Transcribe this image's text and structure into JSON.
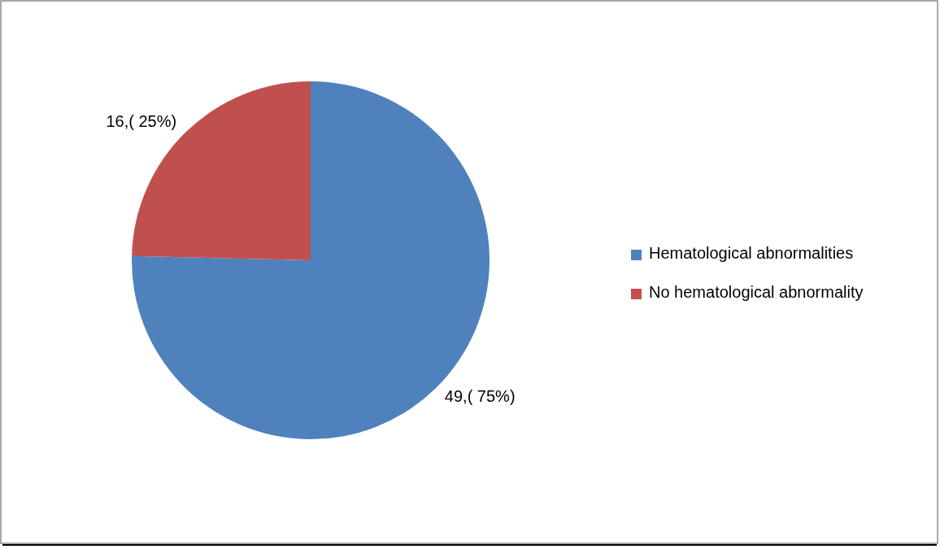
{
  "chart_data": {
    "type": "pie",
    "categories": [
      "Hematological abnormalities",
      "No hematological abnormality"
    ],
    "values": [
      49,
      16
    ],
    "colors": [
      "#4f81bd",
      "#c0504d"
    ],
    "value_labels": [
      "49,( 75%)",
      "16,( 25%)"
    ],
    "legend": "right"
  }
}
